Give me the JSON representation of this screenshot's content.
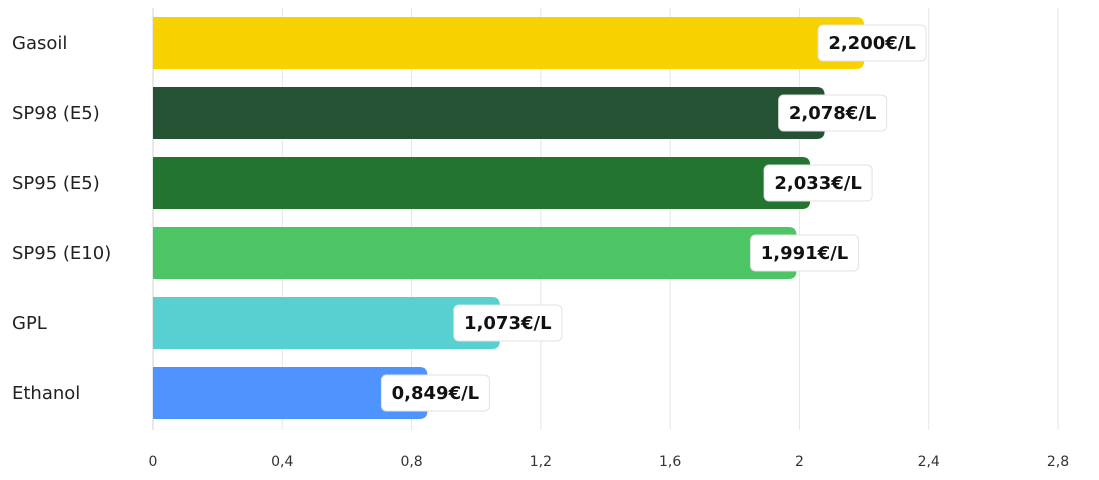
{
  "chart_data": {
    "type": "bar",
    "orientation": "horizontal",
    "title": "",
    "xlabel": "",
    "ylabel": "",
    "xlim": [
      0,
      2.8
    ],
    "grid": true,
    "ticks": [
      "0",
      "0,4",
      "0,8",
      "1,2",
      "1,6",
      "2",
      "2,4",
      "2,8"
    ],
    "tick_values": [
      0,
      0.4,
      0.8,
      1.2,
      1.6,
      2.0,
      2.4,
      2.8
    ],
    "categories": [
      "Gasoil",
      "SP98 (E5)",
      "SP95 (E5)",
      "SP95 (E10)",
      "GPL",
      "Ethanol"
    ],
    "values": [
      2.2,
      2.078,
      2.033,
      1.991,
      1.073,
      0.849
    ],
    "value_labels": [
      "2,200€/L",
      "2,078€/L",
      "2,033€/L",
      "1,991€/L",
      "1,073€/L",
      "0,849€/L"
    ],
    "colors": [
      "#f8d100",
      "#245233",
      "#237430",
      "#4ec565",
      "#58cfd0",
      "#4f94fe"
    ]
  }
}
